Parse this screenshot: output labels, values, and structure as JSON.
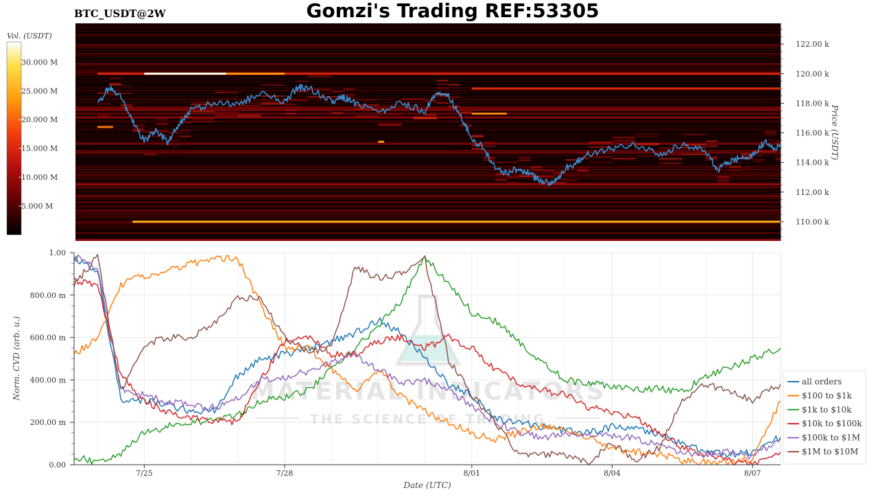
{
  "header": {
    "title": "Gomzi's Trading REF:53305",
    "symbol": "BTC_USDT@2W"
  },
  "watermark": {
    "line1": "MATERIAL INDICATORS",
    "line2": "THE SCIENCE OF TRADING"
  },
  "chart_data": [
    {
      "type": "heatmap",
      "title": "",
      "ylabel": "Price (USDT)",
      "ylim": [
        108700,
        123400
      ],
      "y_ticks": [
        "110.00 k",
        "112.00 k",
        "114.00 k",
        "116.00 k",
        "118.00 k",
        "120.00 k",
        "122.00 k"
      ],
      "y_tick_values": [
        110000,
        112000,
        114000,
        116000,
        118000,
        120000,
        122000
      ],
      "colorbar": {
        "label": "Vol. (USDT)",
        "ticks": [
          "5.000 M",
          "10.000 M",
          "15.000 M",
          "20.000 M",
          "25.000 M",
          "30.000 M"
        ],
        "tick_values": [
          5,
          10,
          15,
          20,
          25,
          30
        ],
        "range": [
          0,
          33.5
        ],
        "colors": [
          "#000000",
          "#5a0000",
          "#b40f0f",
          "#f23a0c",
          "#ff9a10",
          "#ffe04a",
          "#ffffff"
        ]
      },
      "strong_levels": [
        {
          "price": 110000,
          "x_start": "7/24 18:00",
          "x_end": "8/08",
          "volume": 24
        },
        {
          "price": 120000,
          "x_start": "7/24",
          "x_end": "8/08",
          "volume": 14
        },
        {
          "price": 120000,
          "x_start": "7/25 00:00",
          "x_end": "7/26 18:00",
          "volume": 33
        },
        {
          "price": 120000,
          "x_start": "7/26 18:00",
          "x_end": "7/28",
          "volume": 22
        },
        {
          "price": 119000,
          "x_start": "8/01",
          "x_end": "8/08",
          "volume": 15
        },
        {
          "price": 117000,
          "x_start": "7/30 18:00",
          "x_end": "7/31 06:00",
          "volume": 14
        },
        {
          "price": 117300,
          "x_start": "8/01",
          "x_end": "8/01 18:00",
          "volume": 21
        },
        {
          "price": 116400,
          "x_start": "7/24",
          "x_end": "7/24 08:00",
          "volume": 20
        },
        {
          "price": 115400,
          "x_start": "7/30",
          "x_end": "7/30 03:00",
          "volume": 22
        },
        {
          "price": 118600,
          "x_start": "7/31 06:00",
          "x_end": "7/31 12:00",
          "volume": 16
        }
      ],
      "series": [
        {
          "name": "",
          "x": [
            "7/24 00:00",
            "7/24 06:00",
            "7/24 12:00",
            "7/24 18:00",
            "7/25 00:00",
            "7/25 06:00",
            "7/25 12:00",
            "7/25 18:00",
            "7/26 00:00",
            "7/26 12:00",
            "7/27 00:00",
            "7/27 12:00",
            "7/28 00:00",
            "7/28 06:00",
            "7/28 12:00",
            "7/29 00:00",
            "7/29 06:00",
            "7/29 12:00",
            "7/30 00:00",
            "7/30 12:00",
            "7/31 00:00",
            "7/31 06:00",
            "7/31 12:00",
            "7/31 18:00",
            "8/01 00:00",
            "8/01 06:00",
            "8/01 12:00",
            "8/01 18:00",
            "8/02 00:00",
            "8/02 06:00",
            "8/02 12:00",
            "8/02 18:00",
            "8/03 00:00",
            "8/03 06:00",
            "8/03 12:00",
            "8/04 00:00",
            "8/04 12:00",
            "8/05 00:00",
            "8/05 12:00",
            "8/06 00:00",
            "8/06 06:00",
            "8/06 12:00",
            "8/06 18:00",
            "8/07 00:00",
            "8/07 06:00",
            "8/07 12:00",
            "8/07 18:00",
            "8/08 00:00"
          ],
          "y": [
            117900,
            119100,
            118400,
            116800,
            115400,
            116200,
            115400,
            116600,
            117600,
            118000,
            118000,
            118600,
            118100,
            119000,
            119100,
            118100,
            118400,
            118000,
            117400,
            118000,
            117500,
            118800,
            118500,
            117200,
            115600,
            115000,
            113600,
            113300,
            113600,
            113200,
            112700,
            112600,
            113600,
            114000,
            114600,
            114900,
            115200,
            114500,
            115300,
            114700,
            113500,
            114100,
            114300,
            114400,
            115400,
            114800,
            116300,
            116400
          ]
        }
      ]
    },
    {
      "type": "line",
      "title": "",
      "xlabel": "Date (UTC)",
      "ylabel": "Norm. CVD (arb. u.)",
      "ylim": [
        0,
        1
      ],
      "y_ticks": [
        "0.00",
        "200.00 m",
        "400.00 m",
        "600.00 m",
        "800.00 m",
        "1.00"
      ],
      "y_tick_values": [
        0,
        0.2,
        0.4,
        0.6,
        0.8,
        1.0
      ],
      "x_ticks": [
        "7/25",
        "7/28",
        "8/01",
        "8/04",
        "8/07"
      ],
      "x_tick_days": [
        1,
        4,
        8,
        11,
        14
      ],
      "x_range_days": [
        -0.5,
        14.6
      ],
      "x_days": [
        -0.5,
        0,
        0.5,
        1,
        1.5,
        2,
        2.5,
        3,
        3.5,
        4,
        4.5,
        5,
        5.5,
        6,
        6.5,
        7,
        7.5,
        8,
        8.5,
        9,
        9.5,
        10,
        10.5,
        11,
        11.5,
        12,
        12.5,
        13,
        13.5,
        14,
        14.6
      ],
      "legend": "right",
      "series": [
        {
          "name": "all orders",
          "color": "#1f77b4",
          "values": [
            0.97,
            0.92,
            0.3,
            0.3,
            0.28,
            0.25,
            0.26,
            0.42,
            0.5,
            0.52,
            0.55,
            0.58,
            0.62,
            0.68,
            0.62,
            0.5,
            0.38,
            0.33,
            0.22,
            0.2,
            0.18,
            0.16,
            0.15,
            0.18,
            0.17,
            0.14,
            0.1,
            0.06,
            0.05,
            0.06,
            0.13
          ]
        },
        {
          "name": "$100 to $1k",
          "color": "#ff7f0e",
          "values": [
            0.52,
            0.6,
            0.85,
            0.89,
            0.92,
            0.95,
            0.97,
            0.97,
            0.75,
            0.55,
            0.55,
            0.45,
            0.35,
            0.45,
            0.32,
            0.25,
            0.2,
            0.15,
            0.12,
            0.15,
            0.18,
            0.17,
            0.13,
            0.08,
            0.06,
            0.05,
            0.02,
            0.01,
            0.01,
            0.03,
            0.3
          ]
        },
        {
          "name": "$1k to $10k",
          "color": "#2ca02c",
          "values": [
            0.04,
            0.01,
            0.05,
            0.15,
            0.18,
            0.2,
            0.21,
            0.23,
            0.3,
            0.32,
            0.35,
            0.45,
            0.55,
            0.65,
            0.78,
            0.98,
            0.85,
            0.72,
            0.68,
            0.58,
            0.48,
            0.4,
            0.38,
            0.37,
            0.35,
            0.36,
            0.34,
            0.42,
            0.46,
            0.5,
            0.55
          ]
        },
        {
          "name": "$10k to $100k",
          "color": "#d62728",
          "values": [
            0.87,
            0.85,
            0.42,
            0.3,
            0.25,
            0.22,
            0.21,
            0.2,
            0.4,
            0.58,
            0.6,
            0.52,
            0.52,
            0.58,
            0.6,
            0.55,
            0.6,
            0.55,
            0.45,
            0.38,
            0.35,
            0.33,
            0.27,
            0.25,
            0.22,
            0.15,
            0.08,
            0.05,
            0.02,
            0.0,
            0.06
          ]
        },
        {
          "name": "$100k to $1M",
          "color": "#9467bd",
          "values": [
            0.98,
            0.93,
            0.36,
            0.33,
            0.3,
            0.28,
            0.27,
            0.31,
            0.4,
            0.41,
            0.44,
            0.48,
            0.52,
            0.45,
            0.38,
            0.4,
            0.35,
            0.28,
            0.2,
            0.15,
            0.13,
            0.14,
            0.15,
            0.14,
            0.12,
            0.1,
            0.06,
            0.05,
            0.06,
            0.04,
            0.12
          ]
        },
        {
          "name": "$1M to $10M",
          "color": "#8c564b",
          "values": [
            0.85,
            0.98,
            0.35,
            0.57,
            0.6,
            0.6,
            0.67,
            0.79,
            0.78,
            0.6,
            0.53,
            0.55,
            0.93,
            0.88,
            0.9,
            0.97,
            0.5,
            0.33,
            0.2,
            0.05,
            0.05,
            0.05,
            0.01,
            0.1,
            0.02,
            0.08,
            0.3,
            0.38,
            0.35,
            0.3,
            0.38
          ]
        }
      ]
    }
  ]
}
